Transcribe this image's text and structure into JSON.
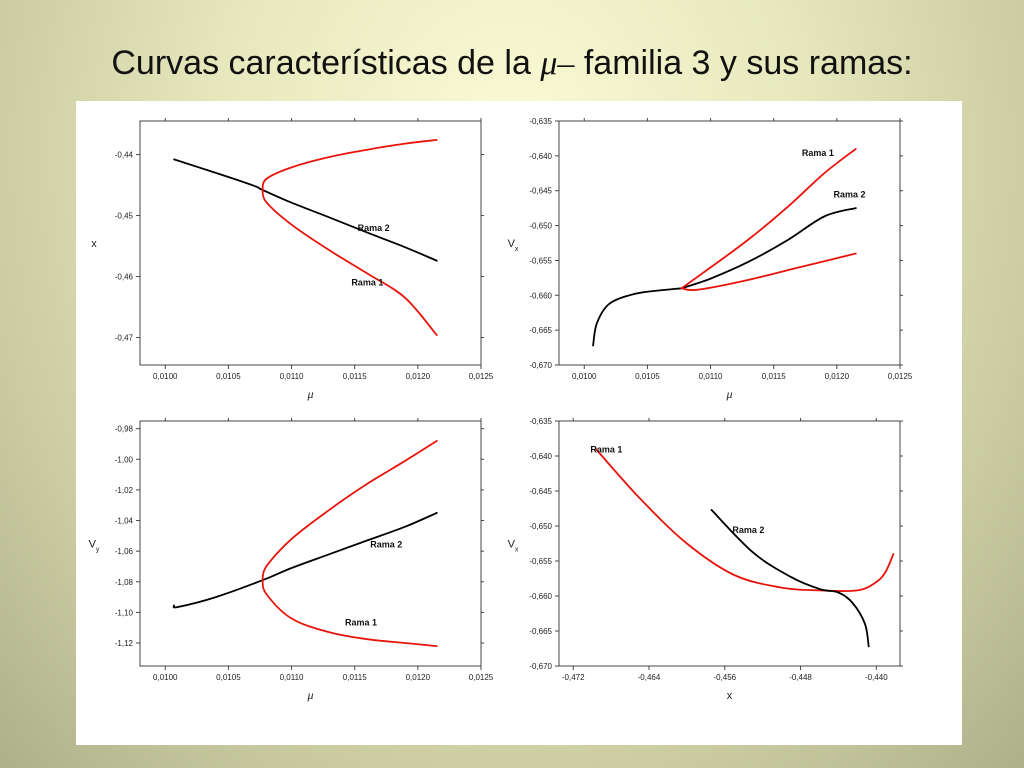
{
  "slide": {
    "title_before": "Curvas características de la",
    "title_symbol": "μ–",
    "title_after": "familia 3 y sus ramas:"
  },
  "chart_data": [
    {
      "type": "line",
      "xlabel": "μ",
      "ylabel": "x",
      "xlim": [
        0.0098,
        0.0125
      ],
      "ylim": [
        -0.4745,
        -0.4345
      ],
      "xticks": [
        "0,0100",
        "0,0105",
        "0,0110",
        "0,0115",
        "0,0120",
        "0,0125"
      ],
      "yticks": [
        "-0,44",
        "-0,45",
        "-0,46",
        "-0,47"
      ],
      "series": [
        {
          "name": "Rama 2",
          "color": "#000000",
          "x": [
            0.01007,
            0.0104,
            0.0107,
            0.01077,
            0.011,
            0.0113,
            0.0116,
            0.0119,
            0.01215
          ],
          "y": [
            -0.4408,
            -0.443,
            -0.4451,
            -0.4458,
            -0.4479,
            -0.4503,
            -0.4528,
            -0.4552,
            -0.4574
          ]
        },
        {
          "name": "",
          "color": "#e8140c",
          "x": [
            0.01215,
            0.0119,
            0.0116,
            0.0113,
            0.011,
            0.0108,
            0.01077
          ],
          "y": [
            -0.4376,
            -0.4382,
            -0.4392,
            -0.4404,
            -0.4421,
            -0.444,
            -0.4458
          ]
        },
        {
          "name": "Rama 1",
          "color": "#e8140c",
          "x": [
            0.01077,
            0.0108,
            0.011,
            0.0113,
            0.0116,
            0.0119,
            0.01215
          ],
          "y": [
            -0.4458,
            -0.4478,
            -0.4515,
            -0.4557,
            -0.4595,
            -0.4635,
            -0.4696
          ]
        }
      ],
      "annotations": [
        {
          "text": "Rama 2",
          "x": 0.01165,
          "y": -0.4525
        },
        {
          "text": "Rama 1",
          "x": 0.0116,
          "y": -0.4615
        }
      ]
    },
    {
      "type": "line",
      "xlabel": "μ",
      "ylabel": "Vx",
      "xlim": [
        0.0098,
        0.0125
      ],
      "ylim": [
        -0.67,
        -0.635
      ],
      "xticks": [
        "0,0100",
        "0,0105",
        "0,0110",
        "0,0115",
        "0,0120",
        "0,0125"
      ],
      "yticks": [
        "-0,635",
        "-0,640",
        "-0,645",
        "-0,650",
        "-0,655",
        "-0,660",
        "-0,665",
        "-0,670"
      ],
      "series": [
        {
          "name": "",
          "color": "#000000",
          "x": [
            0.01007,
            0.0101,
            0.0102,
            0.0104,
            0.0106,
            0.01077
          ],
          "y": [
            -0.6672,
            -0.664,
            -0.6612,
            -0.6598,
            -0.6593,
            -0.659
          ]
        },
        {
          "name": "Rama 2",
          "color": "#000000",
          "x": [
            0.01077,
            0.011,
            0.0113,
            0.0116,
            0.0119,
            0.01215
          ],
          "y": [
            -0.659,
            -0.6576,
            -0.6552,
            -0.6522,
            -0.6487,
            -0.6475
          ]
        },
        {
          "name": "Rama 1",
          "color": "#e8140c",
          "x": [
            0.01077,
            0.011,
            0.0113,
            0.0116,
            0.0119,
            0.01215
          ],
          "y": [
            -0.659,
            -0.656,
            -0.652,
            -0.6475,
            -0.6425,
            -0.639
          ]
        },
        {
          "name": "",
          "color": "#e8140c",
          "x": [
            0.01077,
            0.0109,
            0.0113,
            0.0117,
            0.01215
          ],
          "y": [
            -0.659,
            -0.6592,
            -0.6578,
            -0.656,
            -0.654
          ]
        }
      ],
      "annotations": [
        {
          "text": "Rama 1",
          "x": 0.01185,
          "y": -0.64
        },
        {
          "text": "Rama 2",
          "x": 0.0121,
          "y": -0.646
        }
      ]
    },
    {
      "type": "line",
      "xlabel": "μ",
      "ylabel": "Vy",
      "xlim": [
        0.0098,
        0.0125
      ],
      "ylim": [
        -1.135,
        -0.975
      ],
      "xticks": [
        "0,0100",
        "0,0105",
        "0,0110",
        "0,0115",
        "0,0120",
        "0,0125"
      ],
      "yticks": [
        "-0,98",
        "-1,00",
        "-1,02",
        "-1,04",
        "-1,06",
        "-1,08",
        "-1,10",
        "-1,12"
      ],
      "series": [
        {
          "name": "Rama 2",
          "color": "#000000",
          "x": [
            0.01007,
            0.0101,
            0.0104,
            0.01077,
            0.011,
            0.0113,
            0.0116,
            0.0119,
            0.01215
          ],
          "y": [
            -1.0955,
            -1.0965,
            -1.09,
            -1.079,
            -1.071,
            -1.062,
            -1.053,
            -1.044,
            -1.035
          ]
        },
        {
          "name": "",
          "color": "#e8140c",
          "x": [
            0.01077,
            0.0108,
            0.011,
            0.0113,
            0.0116,
            0.0119,
            0.01215
          ],
          "y": [
            -1.079,
            -1.07,
            -1.052,
            -1.033,
            -1.016,
            -1.001,
            -0.988
          ]
        },
        {
          "name": "Rama 1",
          "color": "#e8140c",
          "x": [
            0.01077,
            0.0108,
            0.011,
            0.0113,
            0.0116,
            0.0119,
            0.01215
          ],
          "y": [
            -1.079,
            -1.088,
            -1.104,
            -1.113,
            -1.1175,
            -1.12,
            -1.122
          ]
        }
      ],
      "annotations": [
        {
          "text": "Rama 2",
          "x": 0.01175,
          "y": -1.0575
        },
        {
          "text": "Rama 1",
          "x": 0.01155,
          "y": -1.1085
        }
      ]
    },
    {
      "type": "line",
      "xlabel": "x",
      "ylabel": "Vx",
      "xlim": [
        -0.4735,
        -0.4375
      ],
      "ylim": [
        -0.67,
        -0.635
      ],
      "xticks": [
        "-0,472",
        "-0,464",
        "-0,456",
        "-0,448",
        "-0,440"
      ],
      "yticks": [
        "-0,635",
        "-0,640",
        "-0,645",
        "-0,650",
        "-0,655",
        "-0,660",
        "-0,665",
        "-0,670"
      ],
      "series": [
        {
          "name": "Rama 1",
          "color": "#e8140c",
          "x": [
            -0.4696,
            -0.465,
            -0.46,
            -0.455,
            -0.45,
            -0.446,
            -0.442,
            -0.44,
            -0.439,
            -0.4382
          ],
          "y": [
            -0.639,
            -0.646,
            -0.6525,
            -0.657,
            -0.6588,
            -0.6592,
            -0.6592,
            -0.658,
            -0.6565,
            -0.654
          ]
        },
        {
          "name": "Rama 2",
          "color": "#000000",
          "x": [
            -0.4574,
            -0.453,
            -0.449,
            -0.446,
            -0.444,
            -0.4425,
            -0.4412,
            -0.4408
          ],
          "y": [
            -0.6477,
            -0.6538,
            -0.6573,
            -0.659,
            -0.6595,
            -0.661,
            -0.664,
            -0.6672
          ]
        }
      ],
      "annotations": [
        {
          "text": "Rama 1",
          "x": -0.4685,
          "y": -0.6395
        },
        {
          "text": "Rama 2",
          "x": -0.4535,
          "y": -0.651
        }
      ]
    }
  ]
}
